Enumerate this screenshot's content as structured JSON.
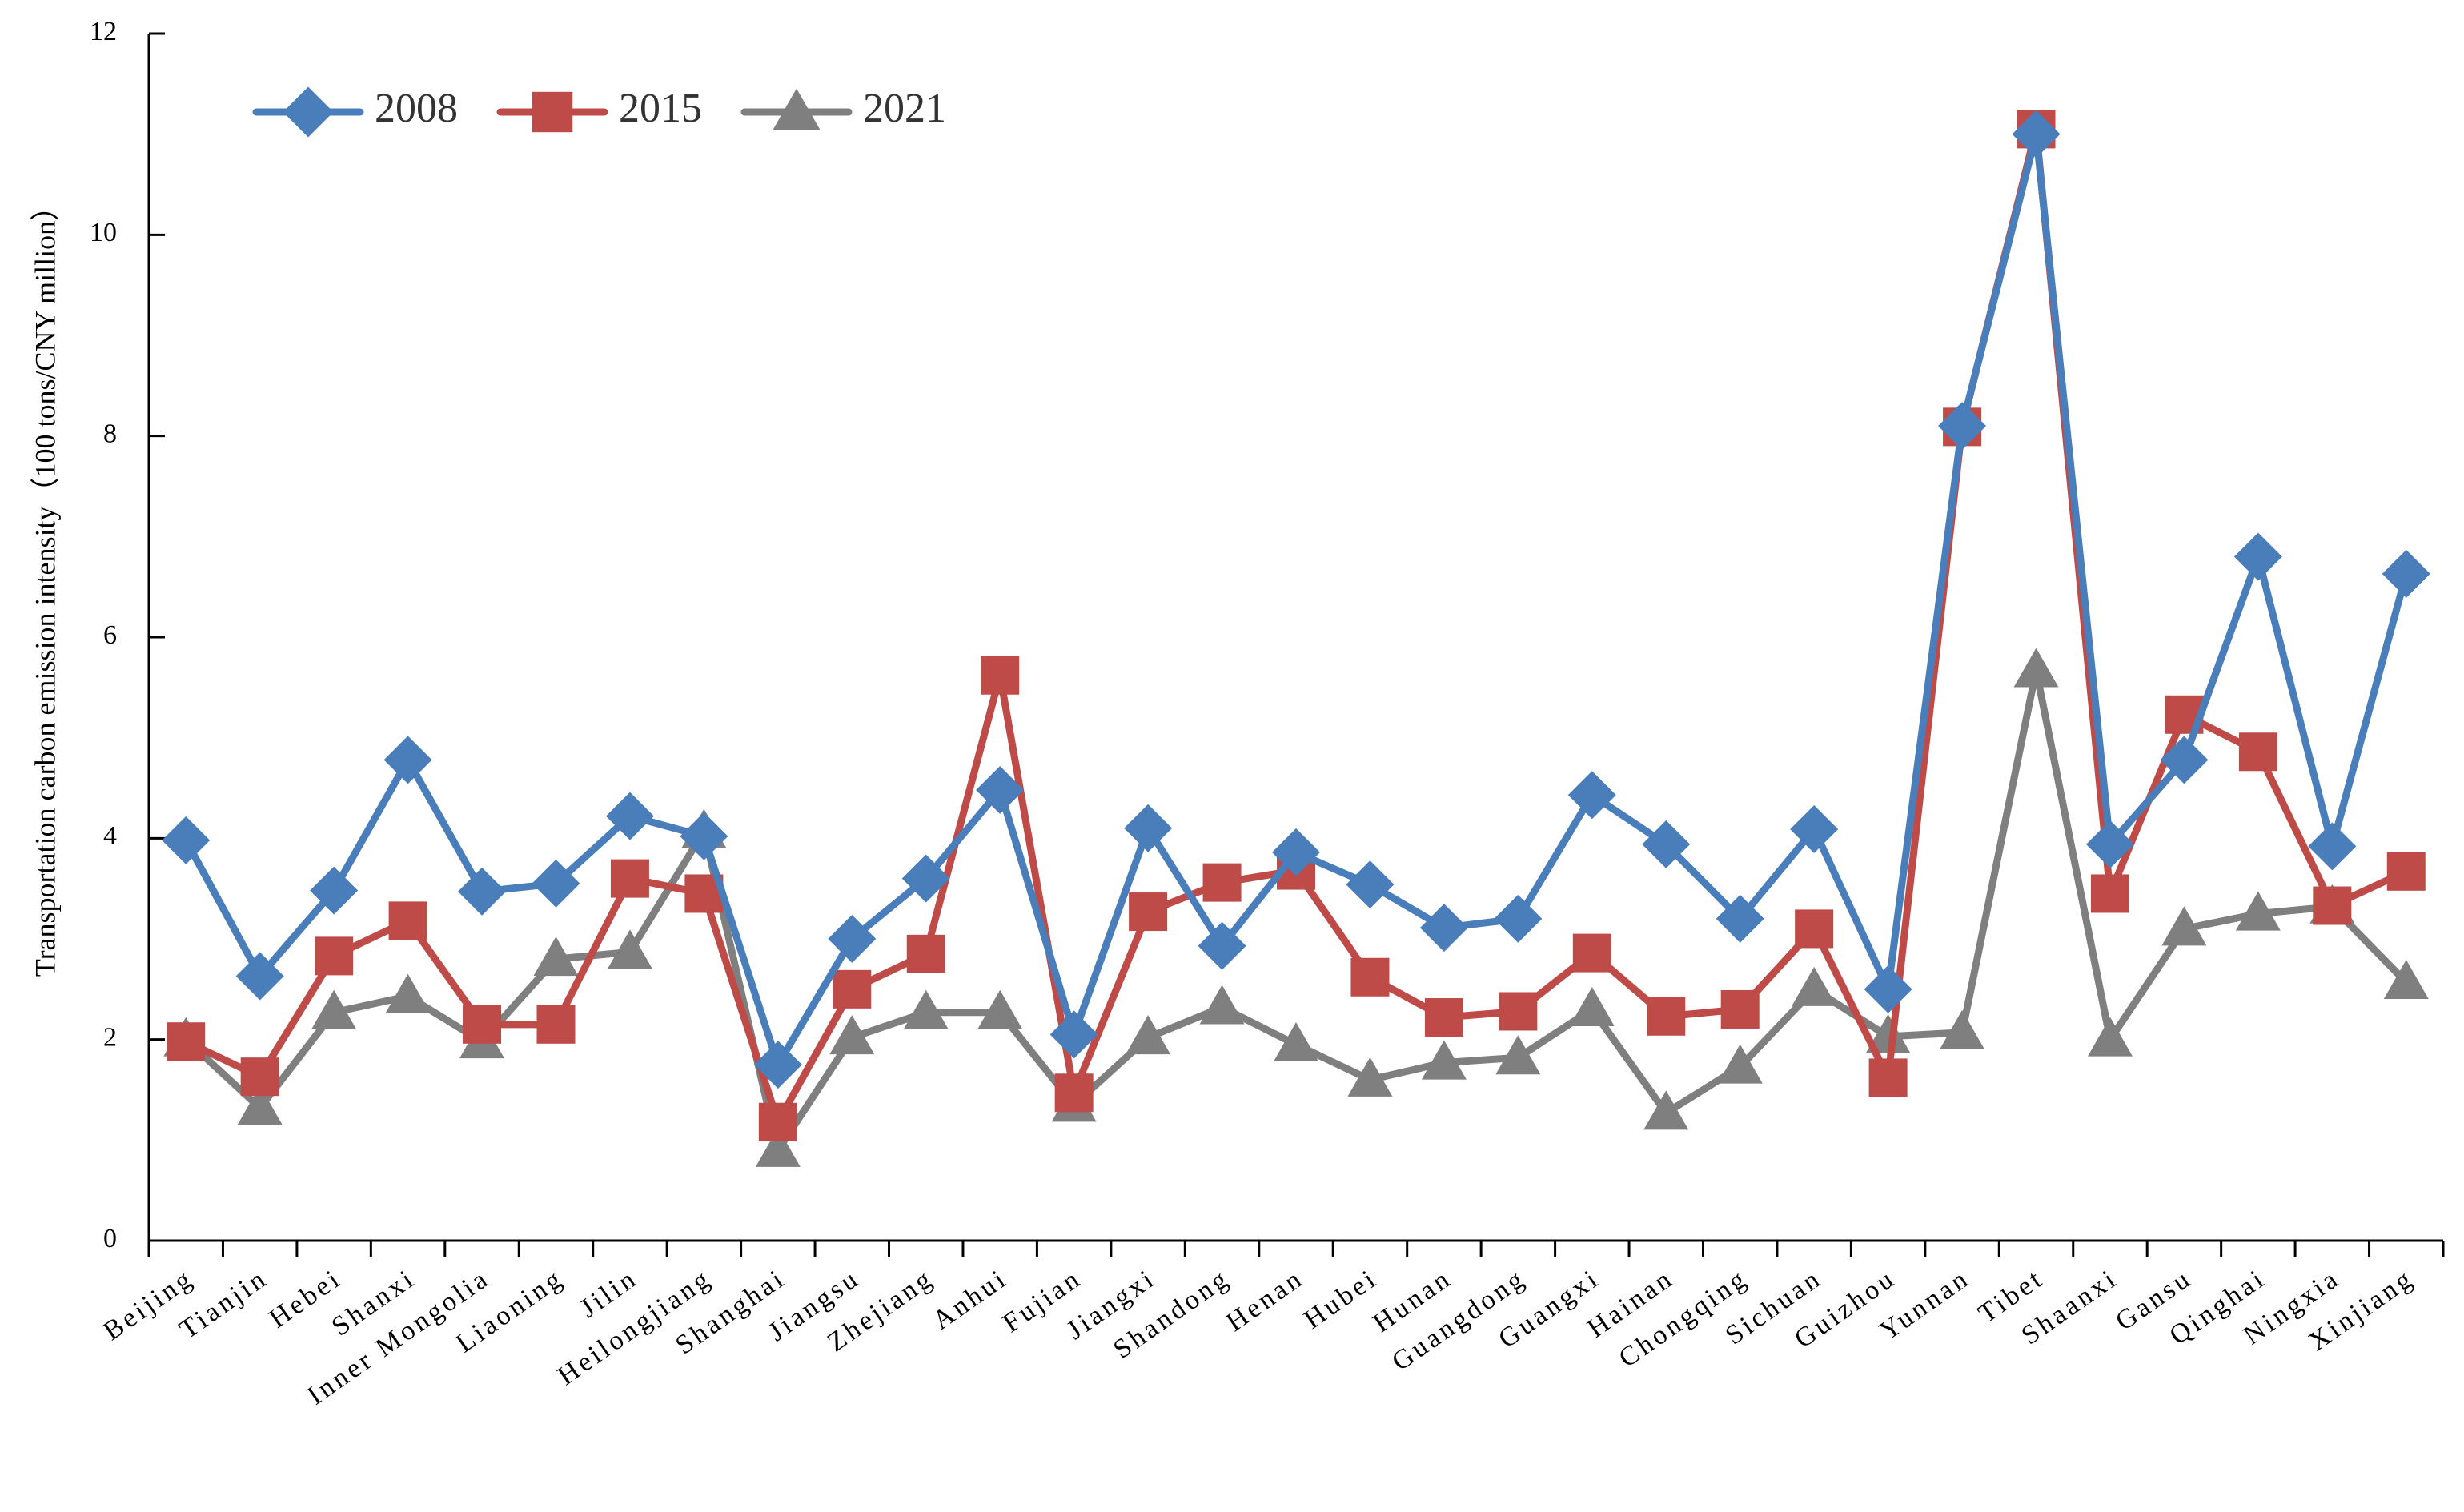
{
  "chart_data": {
    "type": "line",
    "title": "",
    "xlabel": "",
    "ylabel": "Transportation carbon emission intensity（100 tons/CNY million）",
    "ylim": [
      0,
      12
    ],
    "yticks": [
      0,
      2,
      4,
      6,
      8,
      10,
      12
    ],
    "grid": false,
    "legend_position": "top-left",
    "categories": [
      "Beijing",
      "Tianjin",
      "Hebei",
      "Shanxi",
      "Inner Mongolia",
      "Liaoning",
      "Jilin",
      "Heilongjiang",
      "Shanghai",
      "Jiangsu",
      "Zhejiang",
      "Anhui",
      "Fujian",
      "Jiangxi",
      "Shandong",
      "Henan",
      "Hubei",
      "Hunan",
      "Guangdong",
      "Guangxi",
      "Hainan",
      "Chongqing",
      "Sichuan",
      "Guizhou",
      "Yunnan",
      "Tibet",
      "Shaanxi",
      "Gansu",
      "Qinghai",
      "Ningxia",
      "Xinjiang"
    ],
    "series": [
      {
        "name": "2008",
        "color": "#4a7ebb",
        "marker": "diamond",
        "values": [
          3.98,
          2.63,
          3.48,
          4.78,
          3.47,
          3.55,
          4.22,
          4.02,
          1.75,
          3.0,
          3.6,
          4.48,
          2.05,
          4.1,
          2.93,
          3.86,
          3.54,
          3.11,
          3.2,
          4.43,
          3.94,
          3.2,
          4.09,
          2.5,
          8.1,
          11.0,
          3.94,
          4.78,
          6.8,
          3.92,
          6.63
        ]
      },
      {
        "name": "2015",
        "color": "#be4b48",
        "marker": "square",
        "values": [
          1.98,
          1.63,
          2.83,
          3.18,
          2.15,
          2.15,
          3.6,
          3.45,
          1.18,
          2.5,
          2.85,
          5.62,
          1.47,
          3.27,
          3.56,
          3.68,
          2.62,
          2.22,
          2.28,
          2.86,
          2.23,
          2.3,
          3.1,
          1.62,
          8.09,
          11.05,
          3.45,
          5.23,
          4.86,
          3.33,
          3.67
        ]
      },
      {
        "name": "2021",
        "color": "#7f7f7f",
        "marker": "triangle",
        "values": [
          2.0,
          1.32,
          2.27,
          2.43,
          1.98,
          2.8,
          2.87,
          4.07,
          0.9,
          2.02,
          2.27,
          2.27,
          1.35,
          2.02,
          2.32,
          1.95,
          1.6,
          1.77,
          1.82,
          2.3,
          1.27,
          1.73,
          2.5,
          2.03,
          2.07,
          5.67,
          2.0,
          3.1,
          3.25,
          3.32,
          2.57
        ]
      }
    ]
  }
}
